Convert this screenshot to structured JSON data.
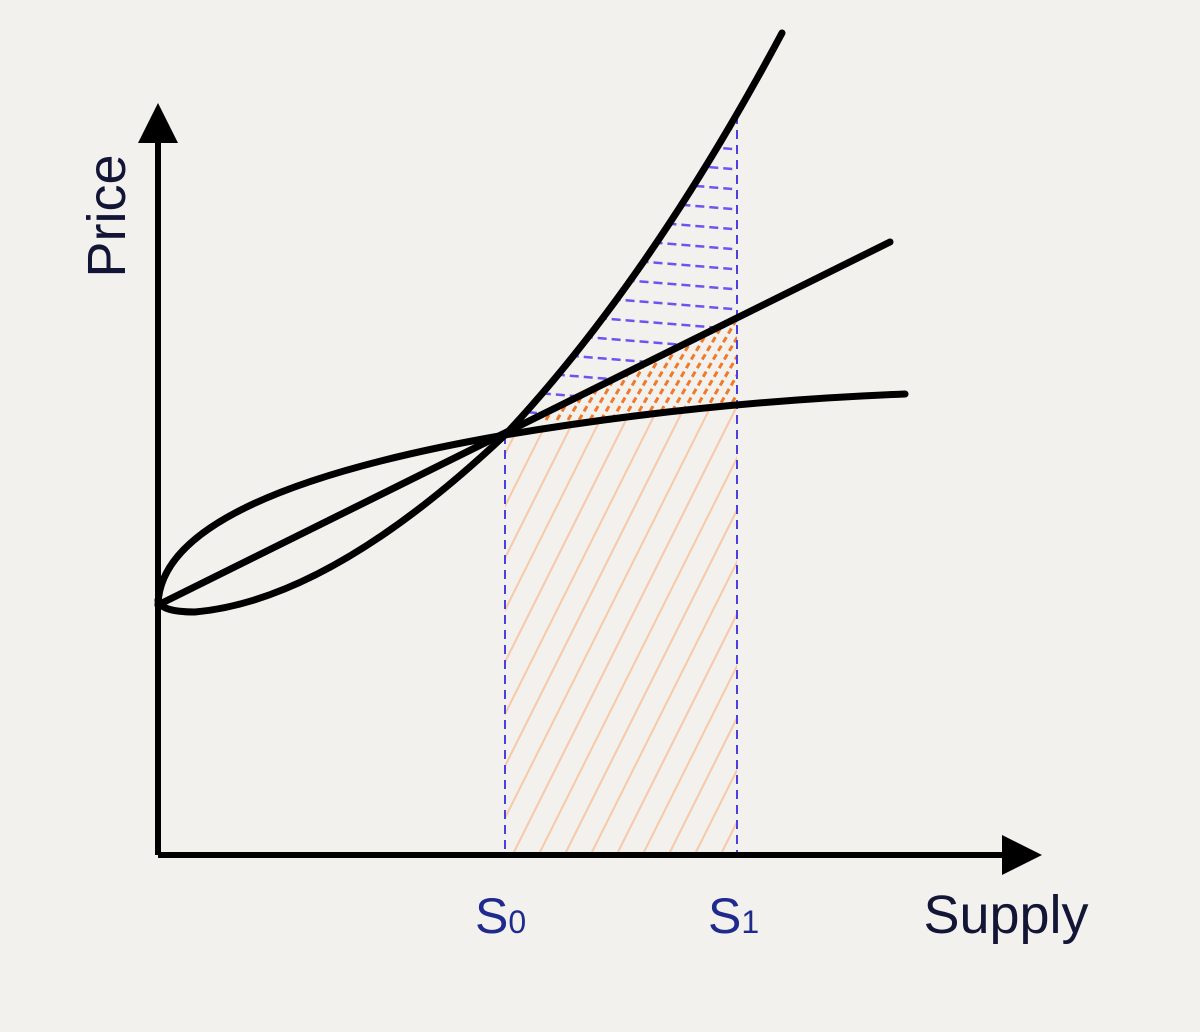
{
  "axes": {
    "x_label": "Supply",
    "y_label": "Price"
  },
  "ticks": [
    {
      "main": "S",
      "sub": "0"
    },
    {
      "main": "S",
      "sub": "1"
    }
  ],
  "colors": {
    "background": "#f3f1ed",
    "curve": "#000000",
    "guide_line": "#4b3fe0",
    "blue_hatch": "#6b55f0",
    "orange_hatch": "#f07a2a",
    "light_hatch": "#f8c8aa",
    "axis_text": "#121535",
    "tick_text": "#1f2a8f"
  }
}
